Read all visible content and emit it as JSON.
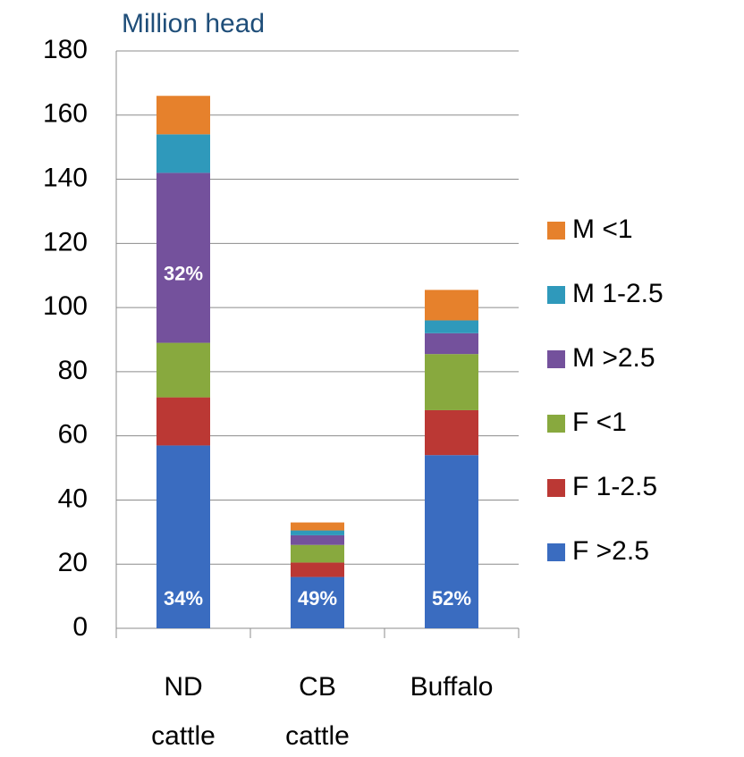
{
  "chart_data": {
    "type": "stacked_bar",
    "title": "Million head",
    "categories": [
      "ND cattle",
      "CB cattle",
      "Buffalo"
    ],
    "series": [
      {
        "name": "F >2.5",
        "color": "#3a6cc0",
        "values": [
          57,
          16,
          54
        ]
      },
      {
        "name": "F 1-2.5",
        "color": "#bb3834",
        "values": [
          15,
          4.5,
          14
        ]
      },
      {
        "name": "F <1",
        "color": "#88a93e",
        "values": [
          17,
          5.5,
          17.5
        ]
      },
      {
        "name": "M >2.5",
        "color": "#74519c",
        "values": [
          53,
          3,
          6.5
        ]
      },
      {
        "name": "M 1-2.5",
        "color": "#2f99bb",
        "values": [
          12,
          1.5,
          4
        ]
      },
      {
        "name": "M <1",
        "color": "#e6812c",
        "values": [
          12,
          2.5,
          9.5
        ]
      }
    ],
    "annotations": [
      {
        "series": 0,
        "category": 0,
        "text": "34%"
      },
      {
        "series": 3,
        "category": 0,
        "text": "32%"
      },
      {
        "series": 0,
        "category": 1,
        "text": "49%"
      },
      {
        "series": 0,
        "category": 2,
        "text": "52%"
      }
    ],
    "ylim": [
      0,
      180
    ],
    "yticks": [
      0,
      20,
      40,
      60,
      80,
      100,
      120,
      140,
      160,
      180
    ],
    "grid": true,
    "legend": "right"
  }
}
